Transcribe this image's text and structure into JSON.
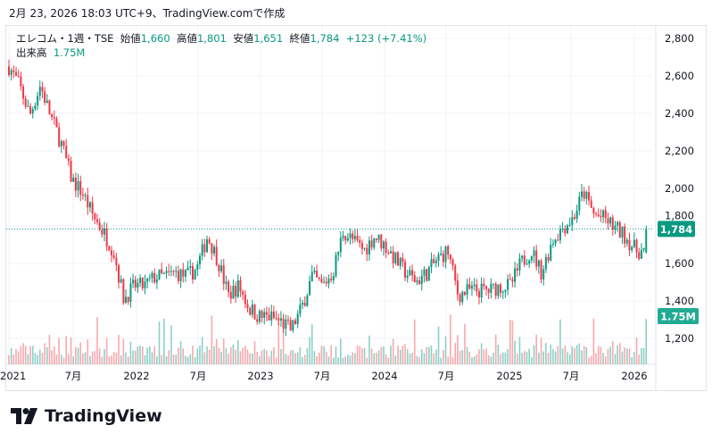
{
  "caption": "2月 23, 2026 18:03 UTC+9、TradingView.comで作成",
  "legend": {
    "symbol": "エレコム・1週・TSE",
    "open_label": "始値",
    "open": "1,660",
    "high_label": "高値",
    "high": "1,801",
    "low_label": "安値",
    "low": "1,651",
    "close_label": "終値",
    "close": "1,784",
    "change": "+123 (+7.41%)",
    "volume_label": "出来高",
    "volume": "1.75M"
  },
  "logo": {
    "text": "TradingView"
  },
  "colors": {
    "up": "#089981",
    "down": "#f23645",
    "vol_up": "#8fcfc6",
    "vol_down": "#f7a9ae",
    "badge": "#089981",
    "vol_badge": "#22ab94"
  },
  "chart_data": {
    "type": "candlestick",
    "interval": "weekly",
    "ylim": [
      1100,
      2850
    ],
    "y_ticks": [
      "1,200",
      "1,400",
      "1,600",
      "1,800",
      "2,000",
      "2,200",
      "2,400",
      "2,600",
      "2,800"
    ],
    "x_ticks": [
      "2021",
      "7月",
      "2022",
      "7月",
      "2023",
      "7月",
      "2024",
      "7月",
      "2025",
      "7月",
      "2026"
    ],
    "monthly_close_approx": [
      2650,
      2550,
      2390,
      2550,
      2385,
      2240,
      2050,
      1980,
      1860,
      1770,
      1670,
      1410,
      1480,
      1480,
      1530,
      1530,
      1550,
      1530,
      1575,
      1745,
      1620,
      1430,
      1480,
      1360,
      1315,
      1315,
      1290,
      1245,
      1360,
      1530,
      1480,
      1550,
      1770,
      1720,
      1670,
      1745,
      1695,
      1620,
      1550,
      1505,
      1550,
      1620,
      1670,
      1430,
      1455,
      1455,
      1455,
      1480,
      1480,
      1600,
      1670,
      1550,
      1720,
      1790,
      1840,
      1980,
      1860,
      1840,
      1790,
      1745,
      1670,
      1660
    ],
    "last_candle": {
      "open": 1660,
      "high": 1801,
      "low": 1651,
      "close": 1784,
      "volume_m": 1.75
    },
    "last_price_label": "1,784",
    "last_volume_label": "1.75M"
  }
}
